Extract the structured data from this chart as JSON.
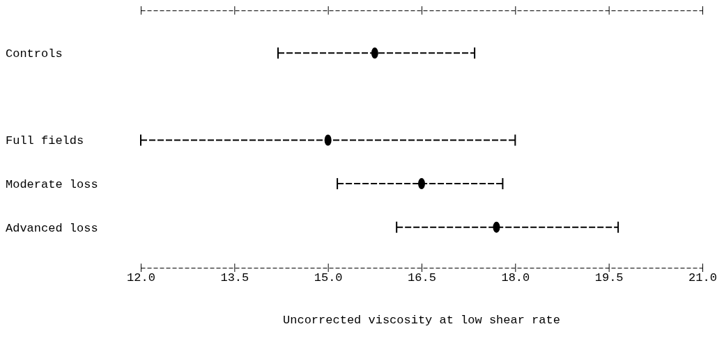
{
  "chart_data": {
    "type": "scatter",
    "orientation": "horizontal",
    "xlabel": "Uncorrected viscosity at low shear rate",
    "categories": [
      "Controls",
      null,
      "Full fields",
      "Moderate loss",
      "Advanced loss"
    ],
    "values": [
      15.75,
      null,
      15.0,
      16.5,
      17.7
    ],
    "errors": [
      [
        14.2,
        17.35
      ],
      null,
      [
        12.0,
        18.0
      ],
      [
        15.15,
        17.8
      ],
      [
        16.1,
        19.65
      ]
    ],
    "color": "#000000",
    "marker": "circle",
    "xlim": [
      12,
      21
    ],
    "xticks": [
      {
        "value": 12,
        "label": "12.0"
      },
      {
        "value": 13.5,
        "label": "13.5"
      },
      {
        "value": 15,
        "label": "15.0"
      },
      {
        "value": 16.5,
        "label": "16.5"
      },
      {
        "value": 18,
        "label": "18.0"
      },
      {
        "value": 19.5,
        "label": "19.5"
      },
      {
        "value": 21,
        "label": "21.0"
      }
    ]
  }
}
